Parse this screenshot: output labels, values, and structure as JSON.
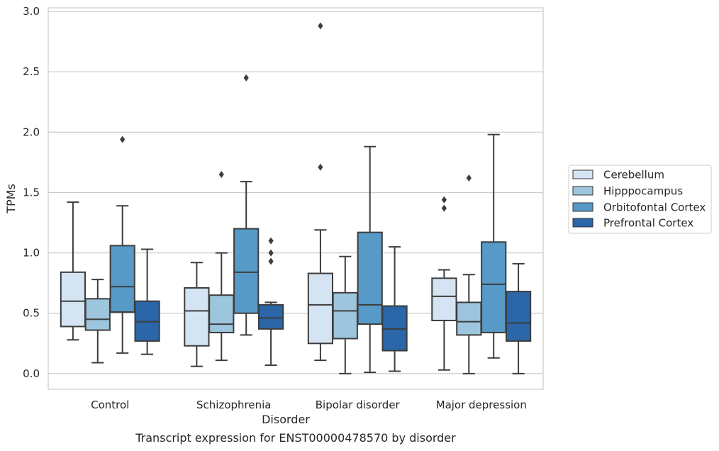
{
  "chart_data": {
    "type": "box",
    "xlabel": "Disorder",
    "ylabel": "TPMs",
    "caption": "Transcript expression for ENST00000478570 by disorder",
    "ylim": [
      -0.13,
      3.03
    ],
    "yticks": [
      "0.0",
      "0.5",
      "1.0",
      "1.5",
      "2.0",
      "2.5",
      "3.0"
    ],
    "ytick_values": [
      0,
      0.5,
      1.0,
      1.5,
      2.0,
      2.5,
      3.0
    ],
    "grid": "horizontal",
    "legend_position": "right",
    "categories": [
      "Control",
      "Schizophrenia",
      "Bipolar disorder",
      "Major depression"
    ],
    "series": [
      {
        "name": "Cerebellum",
        "color": "#d5e4f3",
        "boxes": [
          {
            "whisker_low": 0.28,
            "q1": 0.39,
            "median": 0.6,
            "q3": 0.84,
            "whisker_high": 1.42,
            "outliers": []
          },
          {
            "whisker_low": 0.06,
            "q1": 0.23,
            "median": 0.52,
            "q3": 0.71,
            "whisker_high": 0.92,
            "outliers": []
          },
          {
            "whisker_low": 0.11,
            "q1": 0.25,
            "median": 0.57,
            "q3": 0.83,
            "whisker_high": 1.19,
            "outliers": [
              1.71,
              2.88
            ]
          },
          {
            "whisker_low": 0.03,
            "q1": 0.44,
            "median": 0.64,
            "q3": 0.79,
            "whisker_high": 0.86,
            "outliers": [
              1.37,
              1.44
            ]
          }
        ]
      },
      {
        "name": "Hipppocampus",
        "color": "#9dc5dd",
        "boxes": [
          {
            "whisker_low": 0.09,
            "q1": 0.36,
            "median": 0.45,
            "q3": 0.62,
            "whisker_high": 0.78,
            "outliers": []
          },
          {
            "whisker_low": 0.11,
            "q1": 0.34,
            "median": 0.41,
            "q3": 0.65,
            "whisker_high": 1.0,
            "outliers": [
              1.65
            ]
          },
          {
            "whisker_low": 0.0,
            "q1": 0.29,
            "median": 0.52,
            "q3": 0.67,
            "whisker_high": 0.97,
            "outliers": []
          },
          {
            "whisker_low": 0.0,
            "q1": 0.32,
            "median": 0.43,
            "q3": 0.59,
            "whisker_high": 0.82,
            "outliers": [
              1.62
            ]
          }
        ]
      },
      {
        "name": "Orbitofontal Cortex",
        "color": "#5799c7",
        "boxes": [
          {
            "whisker_low": 0.17,
            "q1": 0.51,
            "median": 0.72,
            "q3": 1.06,
            "whisker_high": 1.39,
            "outliers": [
              1.94
            ]
          },
          {
            "whisker_low": 0.32,
            "q1": 0.5,
            "median": 0.84,
            "q3": 1.2,
            "whisker_high": 1.59,
            "outliers": [
              2.45
            ]
          },
          {
            "whisker_low": 0.01,
            "q1": 0.41,
            "median": 0.57,
            "q3": 1.17,
            "whisker_high": 1.88,
            "outliers": []
          },
          {
            "whisker_low": 0.13,
            "q1": 0.34,
            "median": 0.74,
            "q3": 1.09,
            "whisker_high": 1.98,
            "outliers": []
          }
        ]
      },
      {
        "name": "Prefrontal Cortex",
        "color": "#2a66a8",
        "boxes": [
          {
            "whisker_low": 0.16,
            "q1": 0.27,
            "median": 0.43,
            "q3": 0.6,
            "whisker_high": 1.03,
            "outliers": []
          },
          {
            "whisker_low": 0.07,
            "q1": 0.37,
            "median": 0.46,
            "q3": 0.57,
            "whisker_high": 0.59,
            "outliers": [
              0.93,
              1.0,
              1.1
            ]
          },
          {
            "whisker_low": 0.02,
            "q1": 0.19,
            "median": 0.37,
            "q3": 0.56,
            "whisker_high": 1.05,
            "outliers": []
          },
          {
            "whisker_low": 0.0,
            "q1": 0.27,
            "median": 0.42,
            "q3": 0.68,
            "whisker_high": 0.91,
            "outliers": []
          }
        ]
      }
    ]
  }
}
